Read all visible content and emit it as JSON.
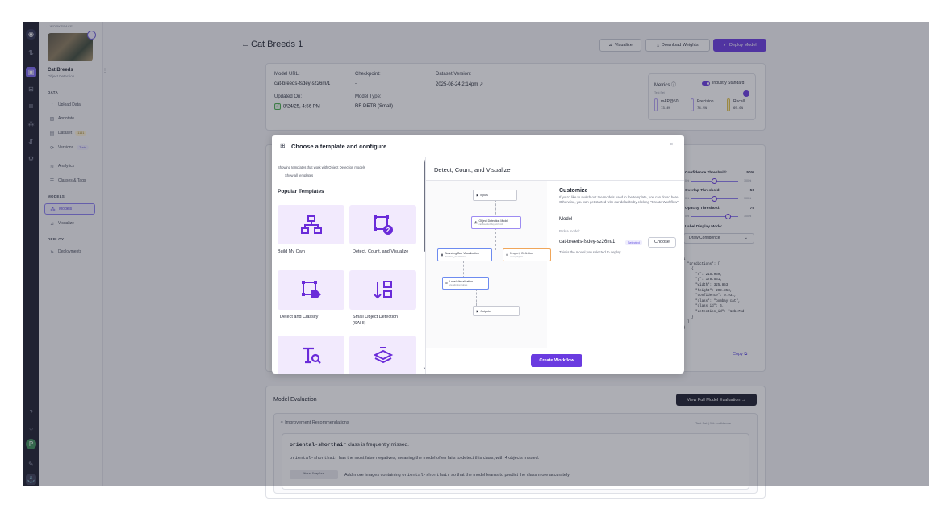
{
  "sidebar": {
    "workspace_link": "← WORKSPACE",
    "project_name": "Cat Breeds",
    "project_type": "Object Detection",
    "more": "⋮",
    "data_section": "DATA",
    "data_items": [
      {
        "icon": "upload-icon",
        "glyph": "↑",
        "label": "Upload Data"
      },
      {
        "icon": "annotate-icon",
        "glyph": "▨",
        "label": "Annotate"
      },
      {
        "icon": "dataset-icon",
        "glyph": "▤",
        "label": "Dataset",
        "badge": "1161"
      },
      {
        "icon": "versions-icon",
        "glyph": "⟳",
        "label": "Versions",
        "badge": "Train"
      },
      {
        "icon": "analytics-icon",
        "glyph": "≋",
        "label": "Analytics"
      },
      {
        "icon": "classes-icon",
        "glyph": "☷",
        "label": "Classes & Tags"
      }
    ],
    "models_section": "MODELS",
    "model_items": [
      {
        "icon": "models-icon",
        "glyph": "⁂",
        "label": "Models",
        "active": true
      },
      {
        "icon": "visualize-icon",
        "glyph": "⊿",
        "label": "Visualize"
      }
    ],
    "deploy_section": "DEPLOY",
    "deploy_items": [
      {
        "icon": "deployments-icon",
        "glyph": "➤",
        "label": "Deployments"
      }
    ]
  },
  "header": {
    "back_glyph": "←",
    "title": "Cat Breeds 1",
    "visualize_label": "Visualize",
    "download_label": "Download Weights",
    "deploy_label": "Deploy Model"
  },
  "model_info": {
    "model_url_label": "Model URL:",
    "model_url": "cat-breeds-fsdey-sz26m/1",
    "checkpoint_label": "Checkpoint:",
    "checkpoint": "-",
    "dataset_version_label": "Dataset Version:",
    "dataset_version": "2025-08-24 2:14pm ↗",
    "updated_label": "Updated On:",
    "updated": "8/24/25, 4:56 PM",
    "model_type_label": "Model Type:",
    "model_type": "RF-DETR (Small)"
  },
  "metrics": {
    "title": "Metrics ⓘ",
    "industry_label": "Industry Standard",
    "test_set": "Test Set",
    "items": [
      {
        "label": "mAP@50",
        "value": "73.4%"
      },
      {
        "label": "Precision",
        "value": "74.5%"
      },
      {
        "label": "Recall",
        "value": "65.6%"
      }
    ]
  },
  "deploy_panel": {
    "confidence_label": "Confidence Threshold:",
    "confidence_value": "50%",
    "overlap_label": "Overlap Threshold:",
    "overlap_value": "50",
    "opacity_label": "Opacity Threshold:",
    "opacity_value": "75",
    "tick_min": "0%",
    "tick_max": "100%",
    "label_mode_label": "Label Display Mode:",
    "label_mode_value": "Draw Confidence",
    "json_text": "{\n  \"predictions\": [\n    {\n      \"x\": 215.069,\n      \"y\": 178.561,\n      \"width\": 325.853,\n      \"height\": 209.853,\n      \"confidence\": 0.931,\n      \"class\": \"bombay-cat\",\n      \"class_id\": 6,\n      \"detection_id\": \"13be75d\n    }\n  ]\n}",
    "copy_label": "Copy ⧉"
  },
  "evaluation": {
    "title": "Model Evaluation",
    "full_button": "View Full Model Evaluation →",
    "recs_title": "Improvement Recommendations",
    "recs_meta": "Test Set | 0% confidence",
    "class_name": "oriental-shorthair",
    "heading_rest": " class is frequently missed.",
    "para_rest": " has the most false negatives, meaning the model often fails to detect this class, with 4 objects missed.",
    "tag": "More Samples",
    "para2_start": "Add more images containing ",
    "para2_end": " so that the model learns to predict the class more accurately."
  },
  "modal": {
    "title": "Choose a template and configure",
    "close": "×",
    "note": "Showing templates that work with Object Detection models",
    "show_all": "Show all templates",
    "popular": "Popular Templates",
    "templates": [
      {
        "icon": "hierarchy-icon",
        "label": "Build My Own"
      },
      {
        "icon": "detect-count-icon",
        "label": "Detect, Count, and Visualize"
      },
      {
        "icon": "detect-classify-icon",
        "label": "Detect and Classify"
      },
      {
        "icon": "sahi-icon",
        "label": "Small Object Detection (SAHI)"
      },
      {
        "icon": "text-search-icon",
        "label": ""
      },
      {
        "icon": "layers-icon",
        "label": ""
      }
    ],
    "right_title": "Detect, Count, and Visualize",
    "workflow_nodes": [
      {
        "name": "Inputs",
        "sub": ""
      },
      {
        "name": "Object Detection Model",
        "sub": "cat-breeds-fsdey-sz26m/1"
      },
      {
        "name": "Bounding Box Visualization",
        "sub": "detection_visualization"
      },
      {
        "name": "Property Definition",
        "sub": "count_objects"
      },
      {
        "name": "Label Visualization",
        "sub": "visualization_labels"
      },
      {
        "name": "Outputs",
        "sub": ""
      }
    ],
    "customize_title": "Customize",
    "customize_text": "If you'd like to switch out the models used in the template, you can do so here. Otherwise, you can get started with our defaults by clicking \"Create Workflow\".",
    "model_label": "Model",
    "pick_label": "Pick a model:",
    "model_name": "cat-breeds-fsdey-sz26m/1",
    "selected_badge": "Selected",
    "choose_button": "Choose",
    "model_desc": "This is the model you selected to deploy",
    "create_button": "Create Workflow"
  }
}
